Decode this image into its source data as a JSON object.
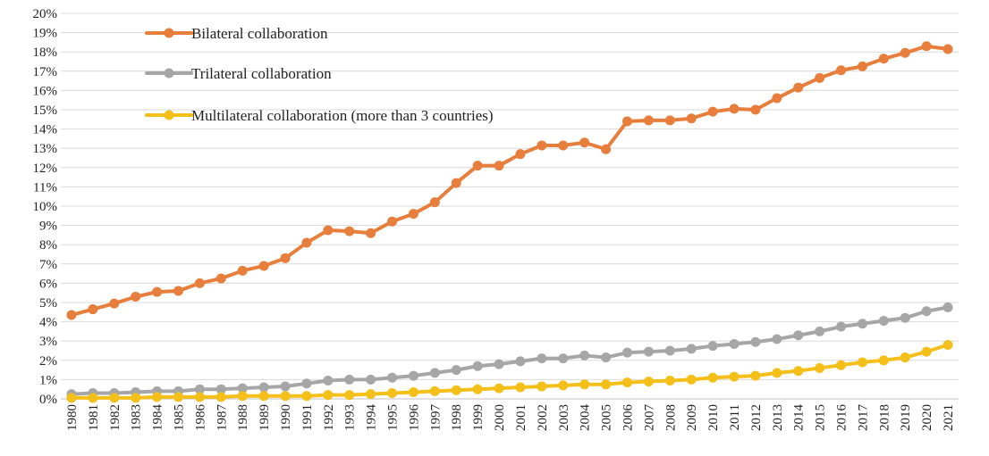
{
  "chart_data": {
    "type": "line",
    "title": "",
    "xlabel": "",
    "ylabel": "",
    "ylim": [
      0,
      20
    ],
    "y_tick_step": 1,
    "y_tick_suffix": "%",
    "grid": true,
    "legend_position": "top-left",
    "categories": [
      "1980",
      "1981",
      "1982",
      "1983",
      "1984",
      "1985",
      "1986",
      "1987",
      "1988",
      "1989",
      "1990",
      "1991",
      "1992",
      "1993",
      "1994",
      "1995",
      "1996",
      "1997",
      "1998",
      "1999",
      "2000",
      "2001",
      "2002",
      "2003",
      "2004",
      "2005",
      "2006",
      "2007",
      "2008",
      "2009",
      "2010",
      "2011",
      "2012",
      "2013",
      "2014",
      "2015",
      "2016",
      "2017",
      "2018",
      "2019",
      "2020",
      "2021"
    ],
    "series": [
      {
        "name": "Bilateral collaboration",
        "color": "#E87E3B",
        "values": [
          4.35,
          4.65,
          4.95,
          5.3,
          5.55,
          5.6,
          6.0,
          6.25,
          6.65,
          6.9,
          7.3,
          8.1,
          8.75,
          8.7,
          8.6,
          9.2,
          9.6,
          10.2,
          11.2,
          12.1,
          12.1,
          12.7,
          13.15,
          13.15,
          13.3,
          12.95,
          14.4,
          14.45,
          14.45,
          14.55,
          14.9,
          15.05,
          15.0,
          15.6,
          16.15,
          16.65,
          17.05,
          17.25,
          17.65,
          17.95,
          18.3,
          18.15
        ]
      },
      {
        "name": "Trilateral collaboration",
        "color": "#A6A6A6",
        "values": [
          0.25,
          0.3,
          0.3,
          0.35,
          0.4,
          0.4,
          0.5,
          0.5,
          0.55,
          0.6,
          0.65,
          0.8,
          0.95,
          1.0,
          1.0,
          1.1,
          1.2,
          1.35,
          1.5,
          1.7,
          1.8,
          1.95,
          2.1,
          2.1,
          2.25,
          2.15,
          2.4,
          2.45,
          2.5,
          2.6,
          2.75,
          2.85,
          2.95,
          3.1,
          3.3,
          3.5,
          3.75,
          3.9,
          4.05,
          4.2,
          4.55,
          4.75
        ]
      },
      {
        "name": "Multilateral collaboration (more than 3 countries)",
        "color": "#F5BF1A",
        "values": [
          0.05,
          0.05,
          0.05,
          0.05,
          0.1,
          0.1,
          0.1,
          0.1,
          0.15,
          0.15,
          0.15,
          0.15,
          0.2,
          0.2,
          0.25,
          0.3,
          0.35,
          0.4,
          0.45,
          0.5,
          0.55,
          0.6,
          0.65,
          0.7,
          0.75,
          0.75,
          0.85,
          0.9,
          0.95,
          1.0,
          1.1,
          1.15,
          1.2,
          1.35,
          1.45,
          1.6,
          1.75,
          1.9,
          2.0,
          2.15,
          2.45,
          2.8
        ]
      }
    ]
  }
}
